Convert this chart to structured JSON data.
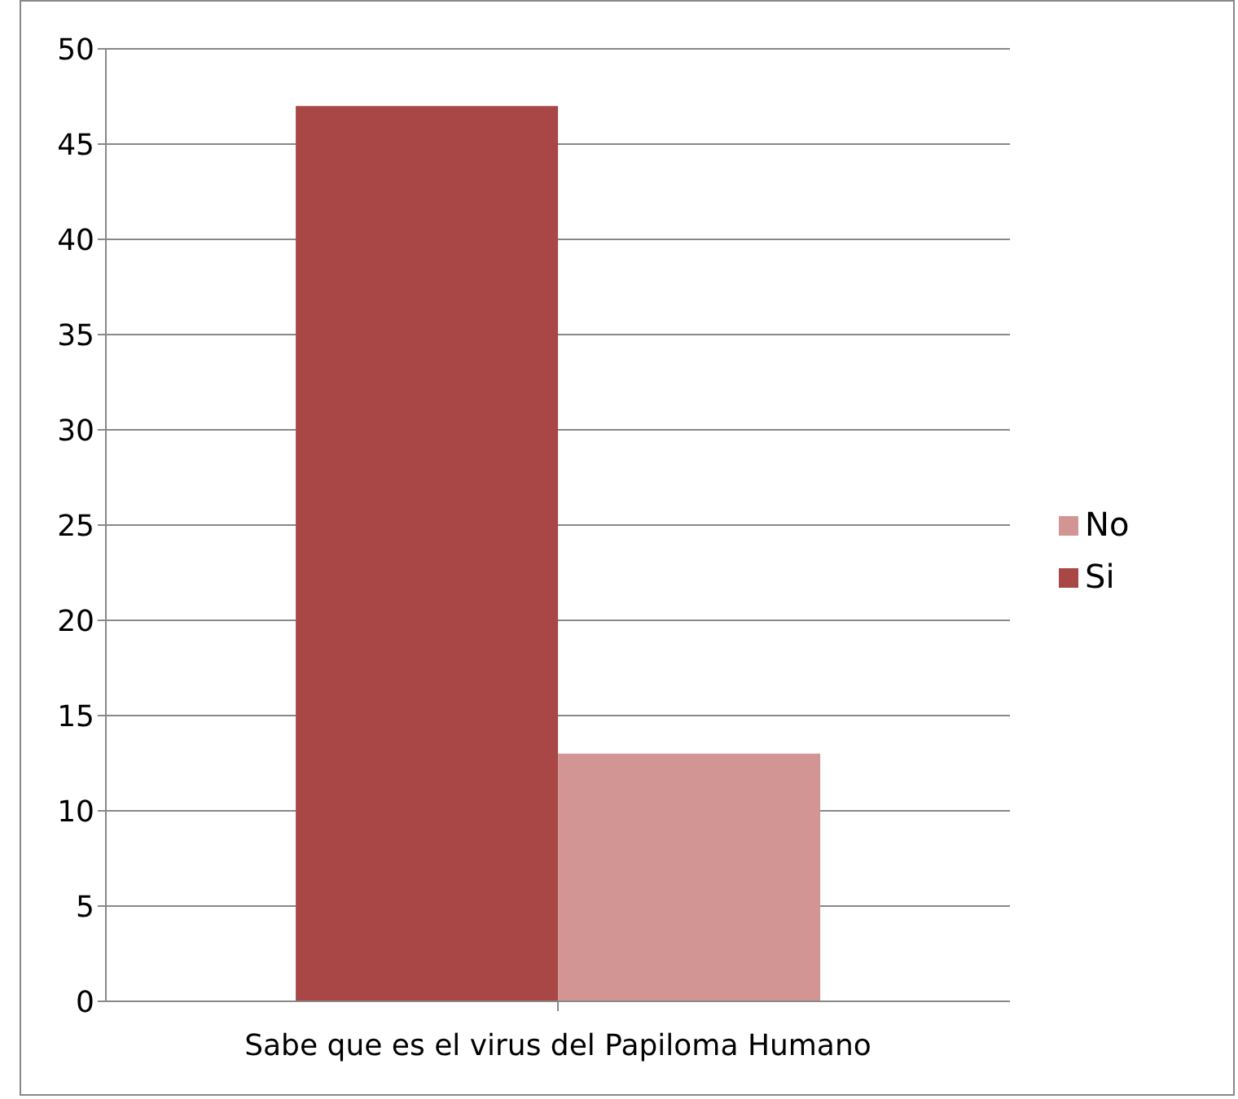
{
  "chart_data": {
    "type": "bar",
    "categories": [
      "Sabe que es el virus del Papiloma Humano"
    ],
    "series": [
      {
        "name": "Si",
        "color": "#a84745",
        "values": [
          47
        ]
      },
      {
        "name": "No",
        "color": "#d39593",
        "values": [
          13
        ]
      }
    ],
    "ylim": [
      0,
      50
    ],
    "yticks": [
      0,
      5,
      10,
      15,
      20,
      25,
      30,
      35,
      40,
      45,
      50
    ],
    "grid": "y",
    "legend": "right"
  }
}
